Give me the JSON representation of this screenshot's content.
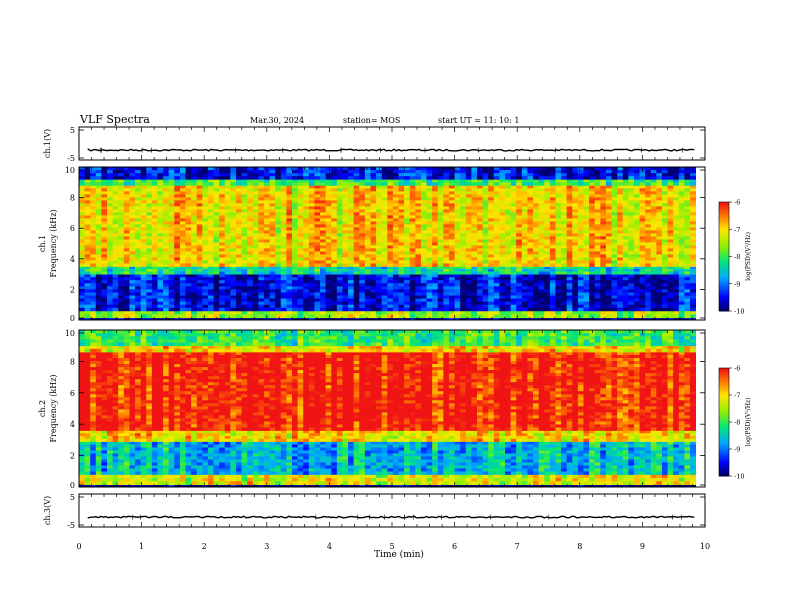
{
  "header": {
    "title": "VLF Spectra",
    "date": "Mar.30, 2024",
    "station": "station= MOS",
    "start": "start  UT  =   11: 10: 1"
  },
  "chart_data": [
    {
      "type": "line",
      "panel": "waveform-ch1",
      "ylabel": "ch.1(V)",
      "ylim": [
        -5,
        5
      ],
      "yticks": [
        "5",
        "-5"
      ],
      "xlim": [
        0,
        10
      ],
      "baseline": -2.0
    },
    {
      "type": "heatmap",
      "panel": "spectrogram-ch1",
      "ylabel": [
        "ch.1",
        "Frequency (kHz)"
      ],
      "ylim": [
        0,
        10
      ],
      "yticks": [
        "0",
        "2",
        "4",
        "6",
        "8",
        "10"
      ],
      "xlim": [
        0,
        9.85
      ],
      "colorbar": {
        "range": [
          -10,
          -6
        ],
        "ticks": [
          "-6",
          "-7",
          "-8",
          "-9",
          "-10"
        ],
        "label": "log(PSD)(V²/Hz)"
      },
      "bands_khz": [
        {
          "from": 0.0,
          "to": 0.15,
          "log_psd": -10
        },
        {
          "from": 0.15,
          "to": 0.6,
          "log_psd": -7.5
        },
        {
          "from": 0.6,
          "to": 3.0,
          "log_psd": -9.6
        },
        {
          "from": 3.0,
          "to": 3.5,
          "log_psd": -8.3
        },
        {
          "from": 3.5,
          "to": 8.8,
          "log_psd": -7.0
        },
        {
          "from": 8.8,
          "to": 9.2,
          "log_psd": -8.0
        },
        {
          "from": 9.2,
          "to": 10.0,
          "log_psd": -9.5
        }
      ]
    },
    {
      "type": "heatmap",
      "panel": "spectrogram-ch2",
      "ylabel": [
        "ch.2",
        "Frequency (kHz)"
      ],
      "ylim": [
        0,
        10
      ],
      "yticks": [
        "0",
        "2",
        "4",
        "6",
        "8",
        "10"
      ],
      "xlim": [
        0,
        9.85
      ],
      "colorbar": {
        "range": [
          -10,
          -6
        ],
        "ticks": [
          "-6",
          "-7",
          "-8",
          "-9",
          "-10"
        ],
        "label": "log(PSD)(V²/Hz)"
      },
      "bands_khz": [
        {
          "from": 0.0,
          "to": 0.15,
          "log_psd": -10
        },
        {
          "from": 0.15,
          "to": 0.8,
          "log_psd": -7.2
        },
        {
          "from": 0.8,
          "to": 2.9,
          "log_psd": -8.6
        },
        {
          "from": 2.9,
          "to": 3.6,
          "log_psd": -7.0
        },
        {
          "from": 3.6,
          "to": 8.6,
          "log_psd": -6.0
        },
        {
          "from": 8.6,
          "to": 9.0,
          "log_psd": -7.0
        },
        {
          "from": 9.0,
          "to": 10.0,
          "log_psd": -8.0
        }
      ]
    },
    {
      "type": "line",
      "panel": "waveform-ch3",
      "ylabel": "ch.3(V)",
      "ylim": [
        -5,
        5
      ],
      "yticks": [
        "5",
        "-5"
      ],
      "xlim": [
        0,
        10
      ],
      "baseline": -2.0
    }
  ],
  "xaxis": {
    "label": "Time  (min)",
    "range": [
      0,
      10
    ],
    "ticks": [
      "0",
      "1",
      "2",
      "3",
      "4",
      "5",
      "6",
      "7",
      "8",
      "9",
      "10"
    ]
  }
}
